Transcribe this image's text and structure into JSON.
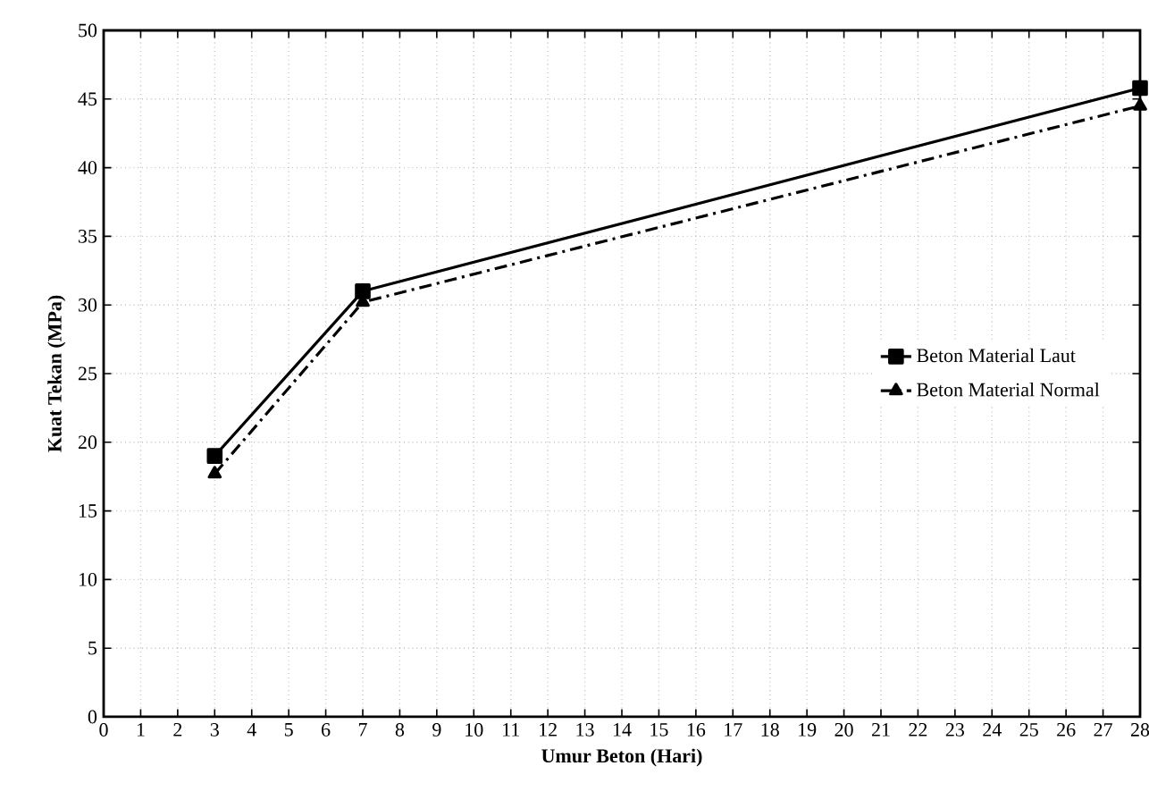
{
  "chart_data": {
    "type": "line",
    "xlabel": "Umur Beton (Hari)",
    "ylabel": "Kuat Tekan (MPa)",
    "xlim": [
      0,
      28
    ],
    "xticks": [
      0,
      1,
      2,
      3,
      4,
      5,
      6,
      7,
      8,
      9,
      10,
      11,
      12,
      13,
      14,
      15,
      16,
      17,
      18,
      19,
      20,
      21,
      22,
      23,
      24,
      25,
      26,
      27,
      28
    ],
    "ylim": [
      0,
      50
    ],
    "yticks": [
      0,
      5,
      10,
      15,
      20,
      25,
      30,
      35,
      40,
      45,
      50
    ],
    "grid": true,
    "legend": "right",
    "series": [
      {
        "name": "Beton Material Laut",
        "color": "#000000",
        "x": [
          3,
          7,
          28
        ],
        "values": [
          19.0,
          31.0,
          45.8
        ],
        "marker": "square",
        "line_style": "solid"
      },
      {
        "name": "Beton Material Normal",
        "color": "#000000",
        "x": [
          3,
          7,
          28
        ],
        "values": [
          17.7,
          30.2,
          44.5
        ],
        "marker": "triangle",
        "line_style": "dashed"
      }
    ]
  }
}
